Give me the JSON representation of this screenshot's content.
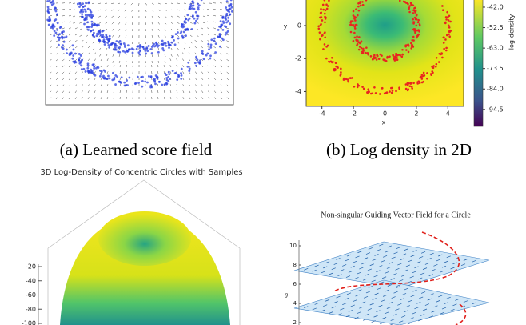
{
  "figures": [
    {
      "caption": "(a) Learned score field"
    },
    {
      "caption": "(b) Log density in 2D",
      "x_label": "x",
      "y_label": "y",
      "xlim": [
        -5,
        5
      ],
      "ylim": [
        -4.9,
        1.6
      ],
      "xticks": [
        -4,
        -2,
        0,
        2,
        4
      ],
      "yticks": [
        0,
        -2,
        -4
      ],
      "colorbar": {
        "label": "log-density",
        "clim": [
          -103.2,
          -37.9
        ],
        "ticks": [
          {
            "value": -42,
            "label": "-42.0"
          },
          {
            "value": -52.5,
            "label": "-52.5"
          },
          {
            "value": -63,
            "label": "-63.0"
          },
          {
            "value": -73.5,
            "label": "-73.5"
          },
          {
            "value": -84,
            "label": "-84.0"
          },
          {
            "value": -94.5,
            "label": "-94.5"
          }
        ]
      }
    },
    {
      "title": "3D Log-Density of Concentric Circles with Samples",
      "zlim": [
        -100,
        -20
      ],
      "zticks": [
        -20,
        -40,
        -60,
        -80,
        -100
      ]
    },
    {
      "title": "Non-singular Guiding Vector Field for a Circle",
      "y_label": "θ",
      "ylim": [
        2,
        10
      ],
      "yticks": [
        10,
        8,
        6,
        4,
        2
      ]
    }
  ]
}
